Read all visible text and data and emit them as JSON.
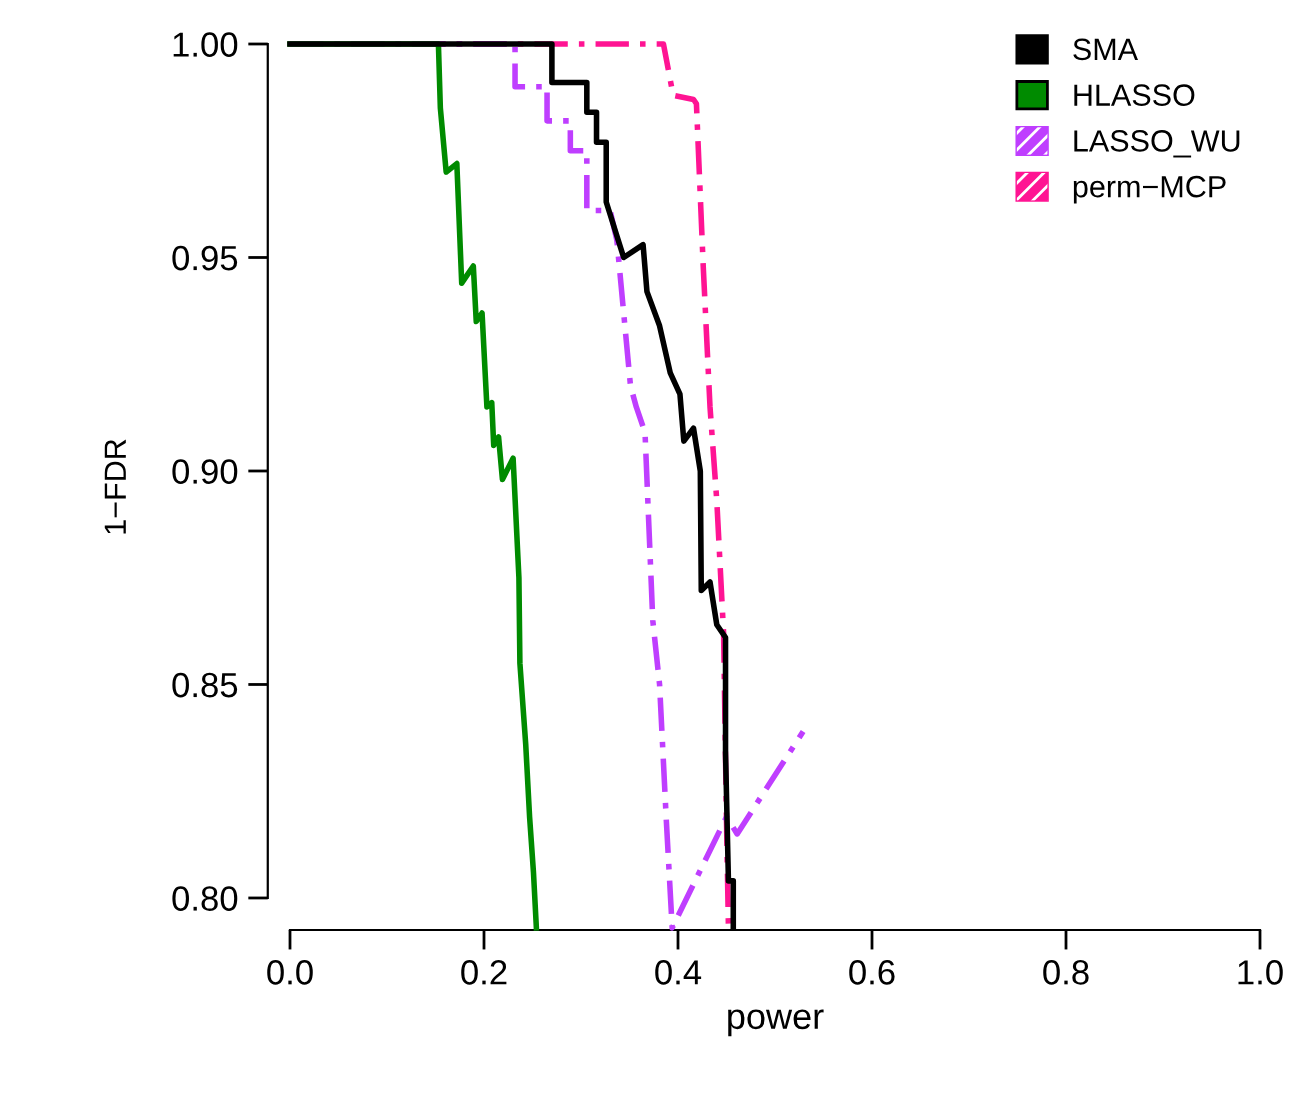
{
  "chart_data": {
    "type": "line",
    "xlabel": "power",
    "ylabel": "1−FDR",
    "xlim": [
      0,
      1
    ],
    "ylim": [
      0.7925,
      1.0
    ],
    "xticks": [
      {
        "value": 0,
        "label": "0.0"
      },
      0.2,
      0.4,
      0.6,
      0.8,
      {
        "value": 1,
        "label": "1.0"
      }
    ],
    "yticks": [
      {
        "value": 0.8,
        "label": "0.80"
      },
      0.85,
      {
        "value": 0.9,
        "label": "0.90"
      },
      0.95,
      {
        "value": 1,
        "label": "1.00"
      }
    ],
    "grid": false,
    "legend": "top right",
    "marker": "none",
    "series": [
      {
        "name": "SMA",
        "color": "#000000",
        "line_style": "solid",
        "x": [
          0,
          0.27,
          0.27,
          0.306,
          0.306,
          0.316,
          0.316,
          0.326,
          0.326,
          0.344,
          0.364,
          0.368,
          0.381,
          0.392,
          0.402,
          0.406,
          0.416,
          0.423,
          0.424,
          0.433,
          0.44,
          0.449,
          0.449,
          0.452,
          0.457,
          0.457
        ],
        "values": [
          1.0,
          1.0,
          0.991,
          0.991,
          0.984,
          0.984,
          0.977,
          0.977,
          0.963,
          0.95,
          0.953,
          0.942,
          0.934,
          0.923,
          0.918,
          0.907,
          0.91,
          0.9,
          0.872,
          0.874,
          0.864,
          0.861,
          0.834,
          0.804,
          0.804,
          0.793
        ]
      },
      {
        "name": "HLASSO",
        "color": "#008b00",
        "line_style": "solid",
        "x": [
          0,
          0.153,
          0.155,
          0.161,
          0.172,
          0.177,
          0.189,
          0.192,
          0.198,
          0.203,
          0.208,
          0.21,
          0.215,
          0.219,
          0.23,
          0.236,
          0.237,
          0.243,
          0.247,
          0.251,
          0.254
        ],
        "values": [
          1.0,
          1.0,
          0.985,
          0.97,
          0.972,
          0.944,
          0.948,
          0.935,
          0.937,
          0.915,
          0.916,
          0.906,
          0.908,
          0.898,
          0.903,
          0.875,
          0.855,
          0.836,
          0.819,
          0.806,
          0.793
        ]
      },
      {
        "name": "LASSO_WU",
        "color": "#bf3eff",
        "line_style": "dashdot",
        "x": [
          0,
          0.232,
          0.232,
          0.265,
          0.265,
          0.289,
          0.289,
          0.306,
          0.306,
          0.33,
          0.337,
          0.344,
          0.351,
          0.357,
          0.366,
          0.374,
          0.381,
          0.388,
          0.394,
          0.45,
          0.461,
          0.529
        ],
        "values": [
          1.0,
          1.0,
          0.99,
          0.99,
          0.982,
          0.982,
          0.975,
          0.975,
          0.961,
          0.961,
          0.954,
          0.937,
          0.92,
          0.915,
          0.909,
          0.865,
          0.85,
          0.818,
          0.793,
          0.819,
          0.815,
          0.839
        ]
      },
      {
        "name": "perm−MCP",
        "color": "#ff1493",
        "line_style": "dashdot",
        "x": [
          0,
          0.385,
          0.395,
          0.416,
          0.419,
          0.426,
          0.433,
          0.44,
          0.447,
          0.45,
          0.452
        ],
        "values": [
          1.0,
          1.0,
          0.988,
          0.987,
          0.986,
          0.948,
          0.915,
          0.893,
          0.862,
          0.818,
          0.793
        ]
      }
    ]
  }
}
